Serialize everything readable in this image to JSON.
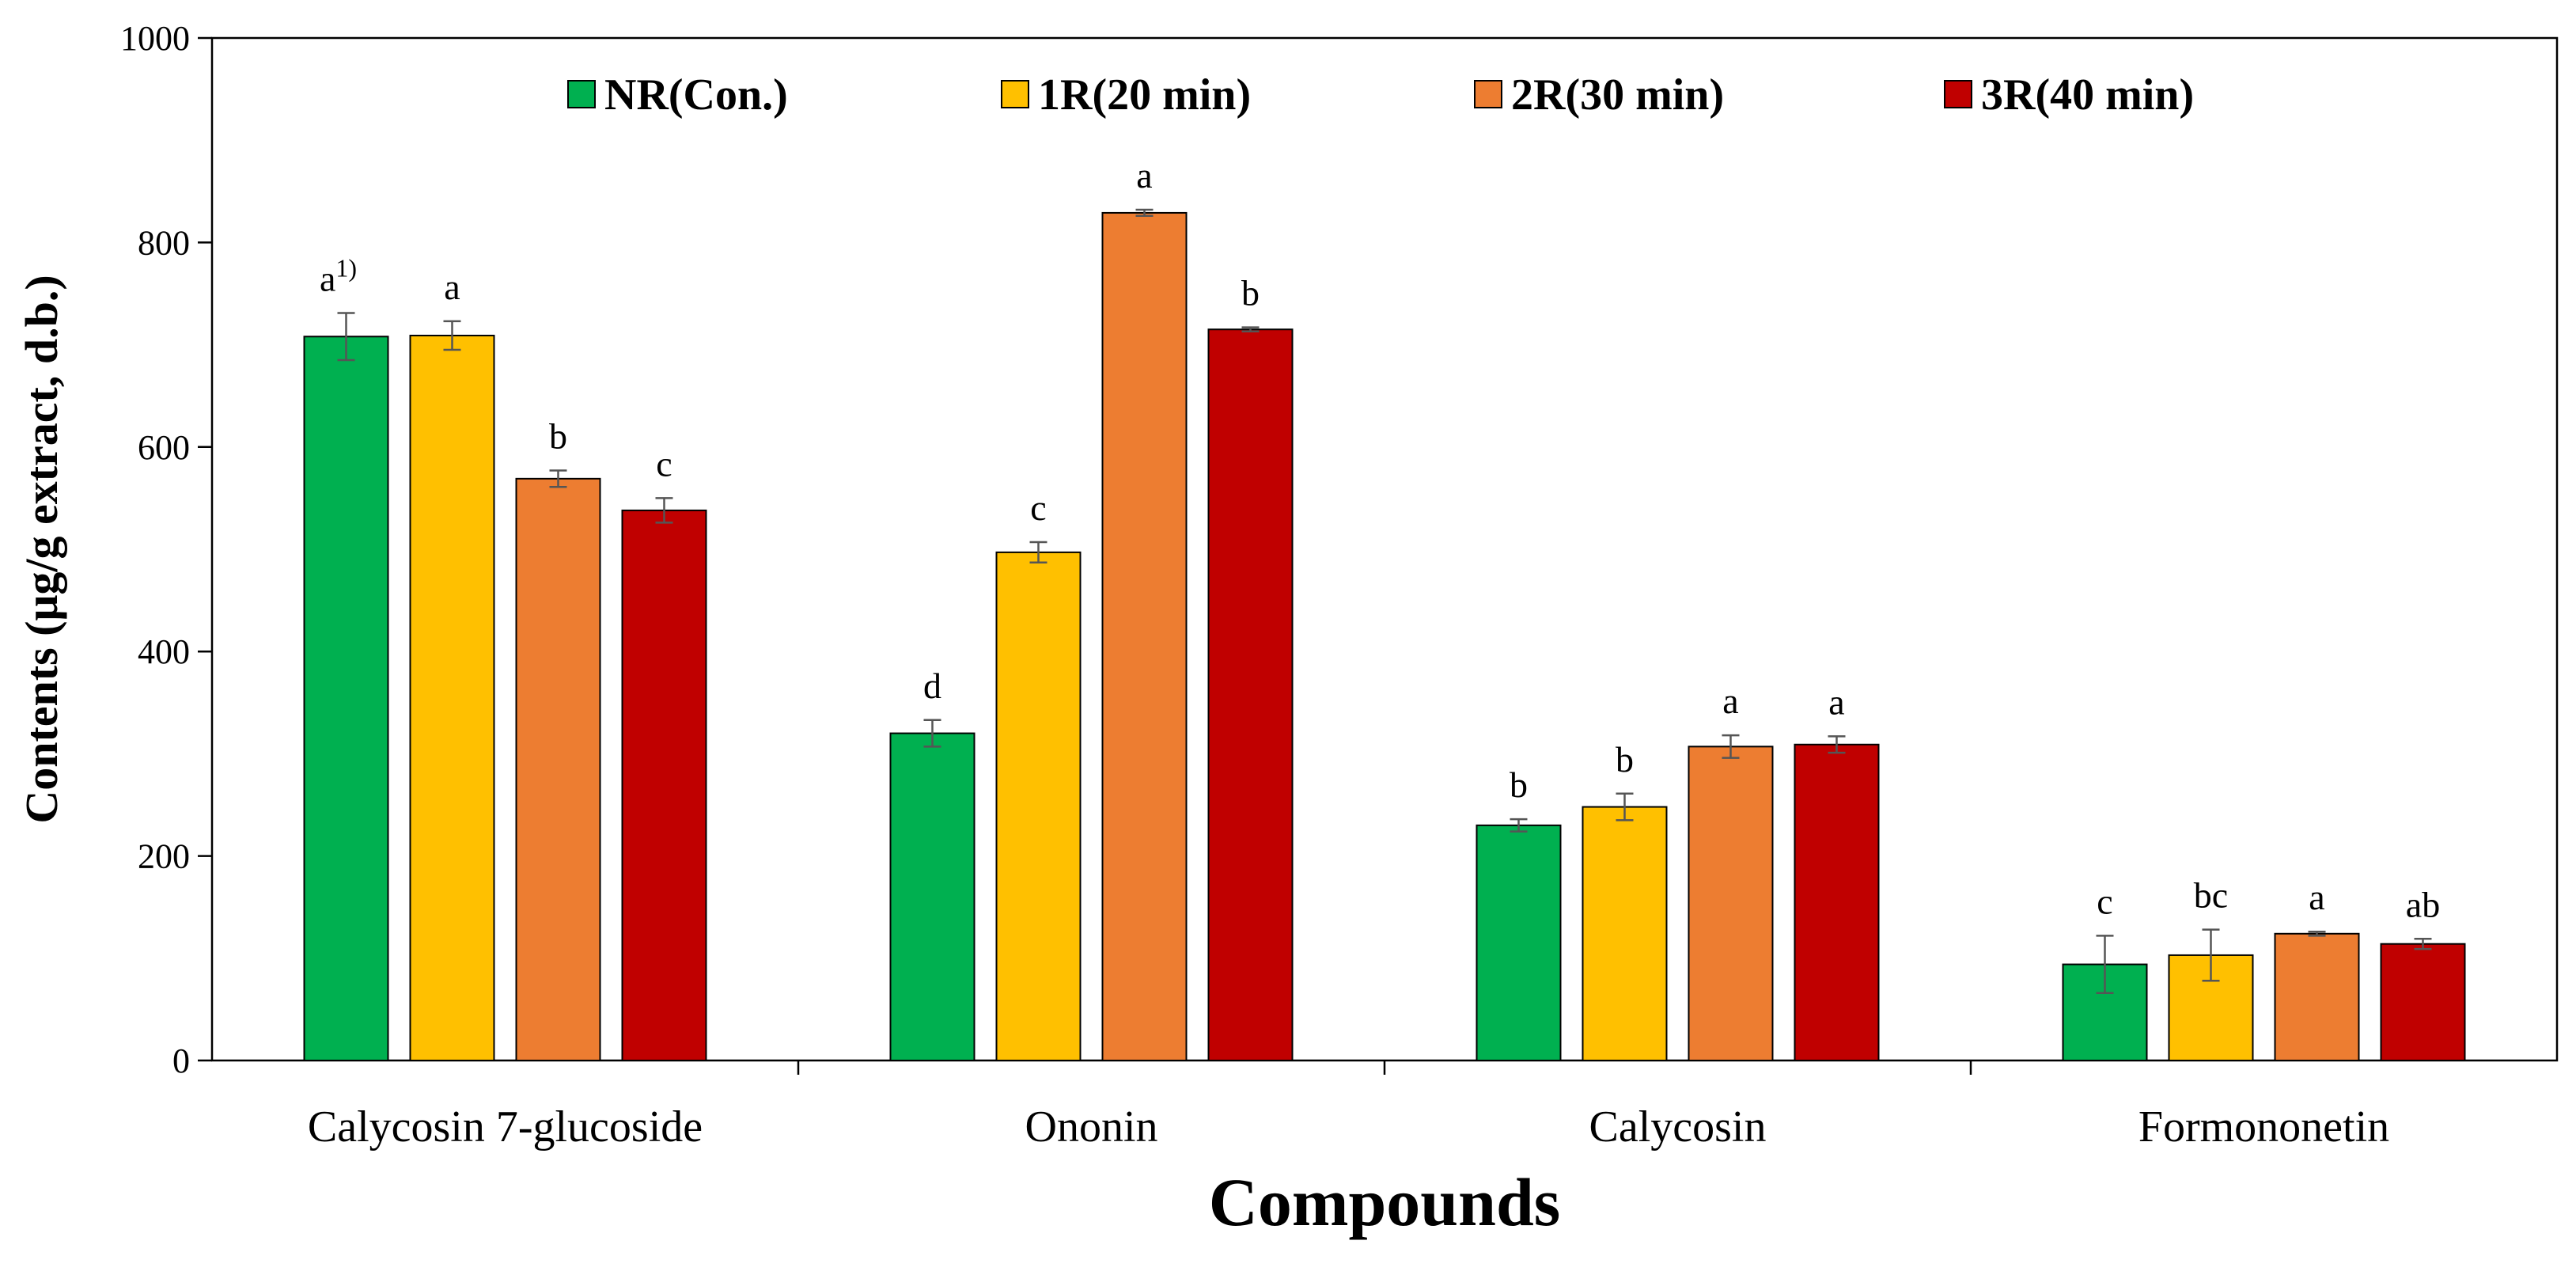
{
  "chart_data": {
    "type": "bar",
    "xlabel": "Compounds",
    "ylabel": "Contents (μg/g extract, d.b.)",
    "ylim": [
      0,
      1000
    ],
    "yticks": [
      0,
      200,
      400,
      600,
      800,
      1000
    ],
    "yticklabels": [
      "0",
      "200",
      "400",
      "600",
      "800",
      "1000"
    ],
    "categories": [
      "Calycosin 7-glucoside",
      "Ononin",
      "Calycosin",
      "Formononetin"
    ],
    "series": [
      {
        "name": "NR(Con.)",
        "color": "#00b050",
        "values": [
          708,
          320,
          230,
          94
        ],
        "errors": [
          23,
          13,
          6,
          28
        ],
        "labels": [
          "a",
          "d",
          "b",
          "c"
        ]
      },
      {
        "name": "1R(20 min)",
        "color": "#ffc000",
        "values": [
          709,
          497,
          248,
          103
        ],
        "errors": [
          14,
          10,
          13,
          25
        ],
        "labels": [
          "a",
          "c",
          "b",
          "bc"
        ]
      },
      {
        "name": "2R(30 min)",
        "color": "#ed7d31",
        "values": [
          569,
          829,
          307,
          124
        ],
        "errors": [
          8,
          3,
          11,
          2
        ],
        "labels": [
          "b",
          "a",
          "a",
          "a"
        ]
      },
      {
        "name": "3R(40 min)",
        "color": "#c00000",
        "values": [
          538,
          715,
          309,
          114
        ],
        "errors": [
          12,
          2,
          8,
          5
        ],
        "labels": [
          "c",
          "b",
          "a",
          "ab"
        ]
      }
    ],
    "footnote_mark": "1)",
    "legend_position": "top-center",
    "grid": false
  }
}
